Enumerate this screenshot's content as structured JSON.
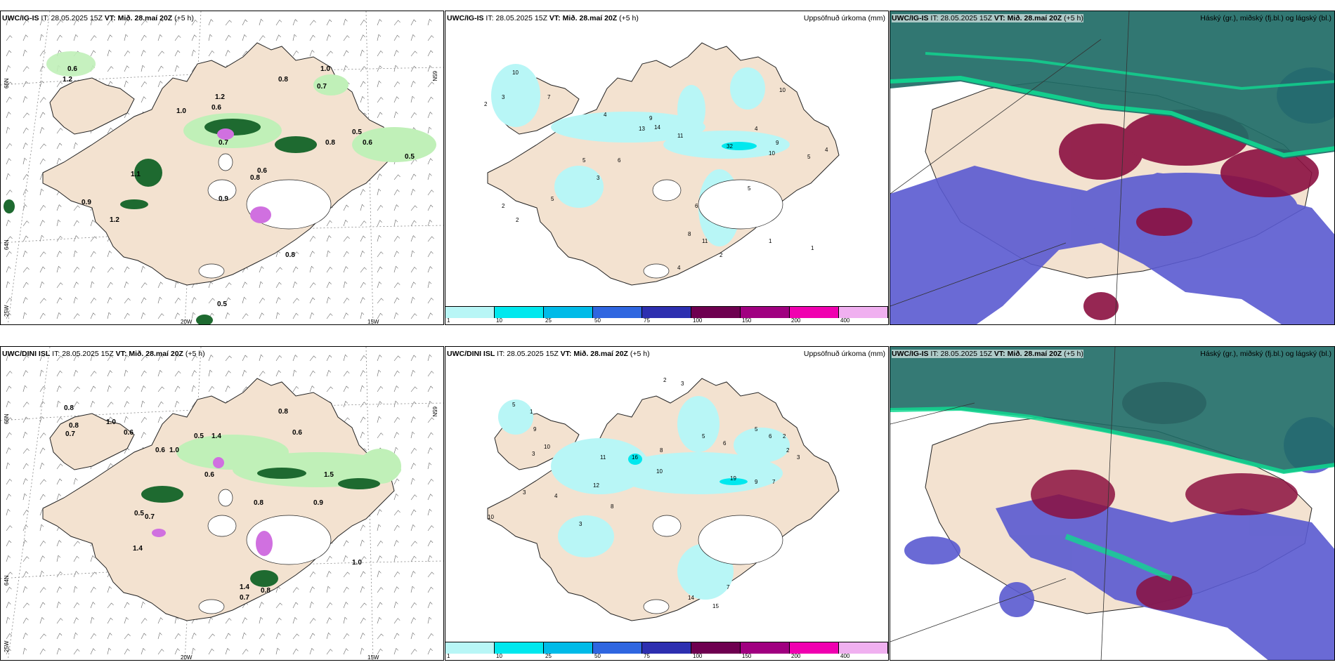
{
  "header": {
    "run_ig": "UWC/IG-IS",
    "run_dini": "UWC/DINI ISL",
    "it_label": "IT:",
    "it_value": "28.05.2025 15Z",
    "vt_label": "VT:",
    "vt_value": "Mið. 28.maí 20Z",
    "lead": "(+5 h)"
  },
  "titles": {
    "accum_precip": "Uppsöfnuð úrkoma (mm)",
    "cloud_levels": "Háský (gr.), miðský (fj.bl.) og lágský (bl.)"
  },
  "axis_ticks": {
    "lat_66": "66N",
    "lat_64": "64N",
    "lat_65": "65N",
    "lon_25": "25W",
    "lon_20": "20W",
    "lon_15": "15W"
  },
  "colorbar": {
    "labels": [
      "1",
      "10",
      "25",
      "50",
      "75",
      "100",
      "150",
      "200",
      "400"
    ],
    "colors": [
      "#b8f6f6",
      "#00e8ee",
      "#00bbe8",
      "#2f66e0",
      "#2d2fb0",
      "#6e0050",
      "#a00080",
      "#f000b0",
      "#f0b0f0"
    ]
  },
  "colors": {
    "land": "#f3e2d0",
    "glacier": "#ffffff",
    "precip_light": "#b8f6f6",
    "precip_mid": "#00e8ee",
    "green_light": "#c0f0b8",
    "green_dark": "#1e6a30",
    "violet": "#d070e0",
    "cloud_high": "#1f6b66",
    "cloud_high_edge": "#10d890",
    "cloud_mid": "#8b1040",
    "cloud_low": "#5a5ad0"
  },
  "rain_labels_ig": [
    "0.6",
    "1.2",
    "1.0",
    "0.7",
    "1.2",
    "0.6",
    "0.8",
    "0.7",
    "0.6",
    "0.5",
    "0.5",
    "0.8",
    "0.9",
    "0.9",
    "1.1",
    "1.2",
    "0.8",
    "0.6",
    "1.0",
    "0.8",
    "0.5"
  ],
  "rain_labels_dini": [
    "0.8",
    "0.8",
    "0.7",
    "1.0",
    "0.6",
    "0.8",
    "0.6",
    "1.0",
    "0.5",
    "1.4",
    "1.5",
    "0.6",
    "0.9",
    "0.6",
    "0.8",
    "0.5",
    "1.4",
    "0.7",
    "0.7",
    "1.4",
    "0.8",
    "1.0"
  ],
  "accum_labels_ig": [
    "2",
    "3",
    "10",
    "7",
    "4",
    "9",
    "13",
    "14",
    "11",
    "5",
    "3",
    "6",
    "10",
    "32",
    "9",
    "10",
    "5",
    "4",
    "2",
    "1",
    "5",
    "4",
    "2",
    "6",
    "5",
    "11",
    "8",
    "2",
    "1",
    "4"
  ],
  "accum_labels_dini": [
    "5",
    "1",
    "9",
    "10",
    "3",
    "11",
    "16",
    "12",
    "8",
    "10",
    "19",
    "9",
    "7",
    "5",
    "2",
    "6",
    "3",
    "10",
    "14",
    "15",
    "7",
    "3",
    "2",
    "4",
    "3",
    "5",
    "8",
    "6",
    "2",
    "3"
  ]
}
